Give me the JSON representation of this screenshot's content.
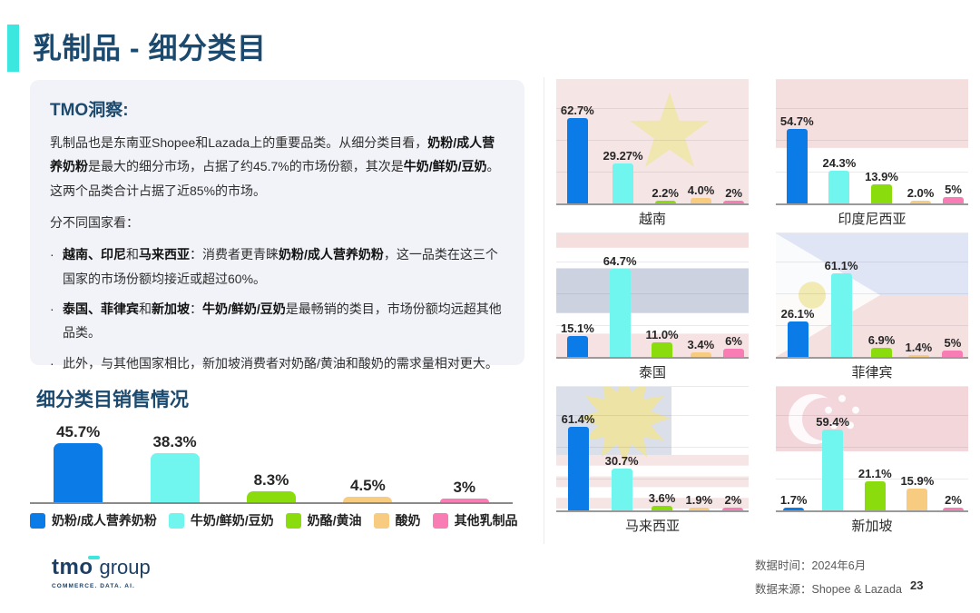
{
  "slide": {
    "title": "乳制品 - 细分类目",
    "accent_color": "#3CE7DF",
    "title_color": "#1B4A6E"
  },
  "insight": {
    "heading": "TMO洞察:",
    "paragraph1_html": "乳制品也是东南亚Shopee和Lazada上的重要品类。从细分类目看，<b>奶粉/成人营养奶粉</b>是最大的细分市场，占据了约45.7%的市场份额，其次是<b>牛奶/鲜奶/豆奶</b>。这两个品类合计占据了近85%的市场。",
    "paragraph2": "分不同国家看：",
    "bullets_html": [
      "<b>越南、印尼</b>和<b>马来西亚</b>：消费者更青睐<b>奶粉/成人营养奶粉</b>，这一品类在这三个国家的市场份额均接近或超过60%。",
      "<b>泰国、菲律宾</b>和<b>新加坡</b>：<b>牛奶/鲜奶/豆奶</b>是最畅销的类目，市场份额均远超其他品类。",
      "此外，与其他国家相比，新加坡消费者对奶酪/黄油和酸奶的需求量相对更大。"
    ]
  },
  "chart_data": [
    {
      "type": "bar",
      "title": "细分类目销售情况",
      "categories": [
        "奶粉/成人营养奶粉",
        "牛奶/鲜奶/豆奶",
        "奶酪/黄油",
        "酸奶",
        "其他乳制品"
      ],
      "values": [
        45.7,
        38.3,
        8.3,
        4.5,
        3
      ],
      "labels": [
        "45.7%",
        "38.3%",
        "8.3%",
        "4.5%",
        "3%"
      ],
      "colors": [
        "#0B7BE8",
        "#70F6EE",
        "#8BDC0C",
        "#F8CC80",
        "#F87DB4"
      ],
      "ylim": [
        0,
        50
      ],
      "grid": false,
      "legend_position": "bottom"
    },
    {
      "type": "bar",
      "title": "越南",
      "categories": [
        "奶粉/成人营养奶粉",
        "牛奶/鲜奶/豆奶",
        "奶酪/黄油",
        "酸奶",
        "其他乳制品"
      ],
      "values": [
        62.7,
        29.27,
        2.2,
        4.0,
        2
      ],
      "labels": [
        "62.7%",
        "29.27%",
        "2.2%",
        "4.0%",
        "2%"
      ],
      "ylim": [
        0,
        70
      ],
      "grid": true
    },
    {
      "type": "bar",
      "title": "印度尼西亚",
      "categories": [
        "奶粉/成人营养奶粉",
        "牛奶/鲜奶/豆奶",
        "奶酪/黄油",
        "酸奶",
        "其他乳制品"
      ],
      "values": [
        54.7,
        24.3,
        13.9,
        2.0,
        5
      ],
      "labels": [
        "54.7%",
        "24.3%",
        "13.9%",
        "2.0%",
        "5%"
      ],
      "ylim": [
        0,
        70
      ],
      "grid": true
    },
    {
      "type": "bar",
      "title": "泰国",
      "categories": [
        "奶粉/成人营养奶粉",
        "牛奶/鲜奶/豆奶",
        "奶酪/黄油",
        "酸奶",
        "其他乳制品"
      ],
      "values": [
        15.1,
        64.7,
        11.0,
        3.4,
        6
      ],
      "labels": [
        "15.1%",
        "64.7%",
        "11.0%",
        "3.4%",
        "6%"
      ],
      "ylim": [
        0,
        70
      ],
      "grid": true
    },
    {
      "type": "bar",
      "title": "菲律宾",
      "categories": [
        "奶粉/成人营养奶粉",
        "牛奶/鲜奶/豆奶",
        "奶酪/黄油",
        "酸奶",
        "其他乳制品"
      ],
      "values": [
        26.1,
        61.1,
        6.9,
        1.4,
        5
      ],
      "labels": [
        "26.1%",
        "61.1%",
        "6.9%",
        "1.4%",
        "5%"
      ],
      "ylim": [
        0,
        70
      ],
      "grid": true
    },
    {
      "type": "bar",
      "title": "马来西亚",
      "categories": [
        "奶粉/成人营养奶粉",
        "牛奶/鲜奶/豆奶",
        "奶酪/黄油",
        "酸奶",
        "其他乳制品"
      ],
      "values": [
        61.4,
        30.7,
        3.6,
        1.9,
        2
      ],
      "labels": [
        "61.4%",
        "30.7%",
        "3.6%",
        "1.9%",
        "2%"
      ],
      "ylim": [
        0,
        70
      ],
      "grid": true
    },
    {
      "type": "bar",
      "title": "新加坡",
      "categories": [
        "奶粉/成人营养奶粉",
        "牛奶/鲜奶/豆奶",
        "奶酪/黄油",
        "酸奶",
        "其他乳制品"
      ],
      "values": [
        1.7,
        59.4,
        21.1,
        15.9,
        2
      ],
      "labels": [
        "1.7%",
        "59.4%",
        "21.1%",
        "15.9%",
        "2%"
      ],
      "ylim": [
        0,
        70
      ],
      "grid": true
    }
  ],
  "footer": {
    "logo_primary": "tmo",
    "logo_secondary": "group",
    "logo_tagline": "COMMERCE. DATA. AI.",
    "data_time": "数据时间：2024年6月",
    "data_source": "数据来源：Shopee & Lazada",
    "page_number": "23"
  }
}
